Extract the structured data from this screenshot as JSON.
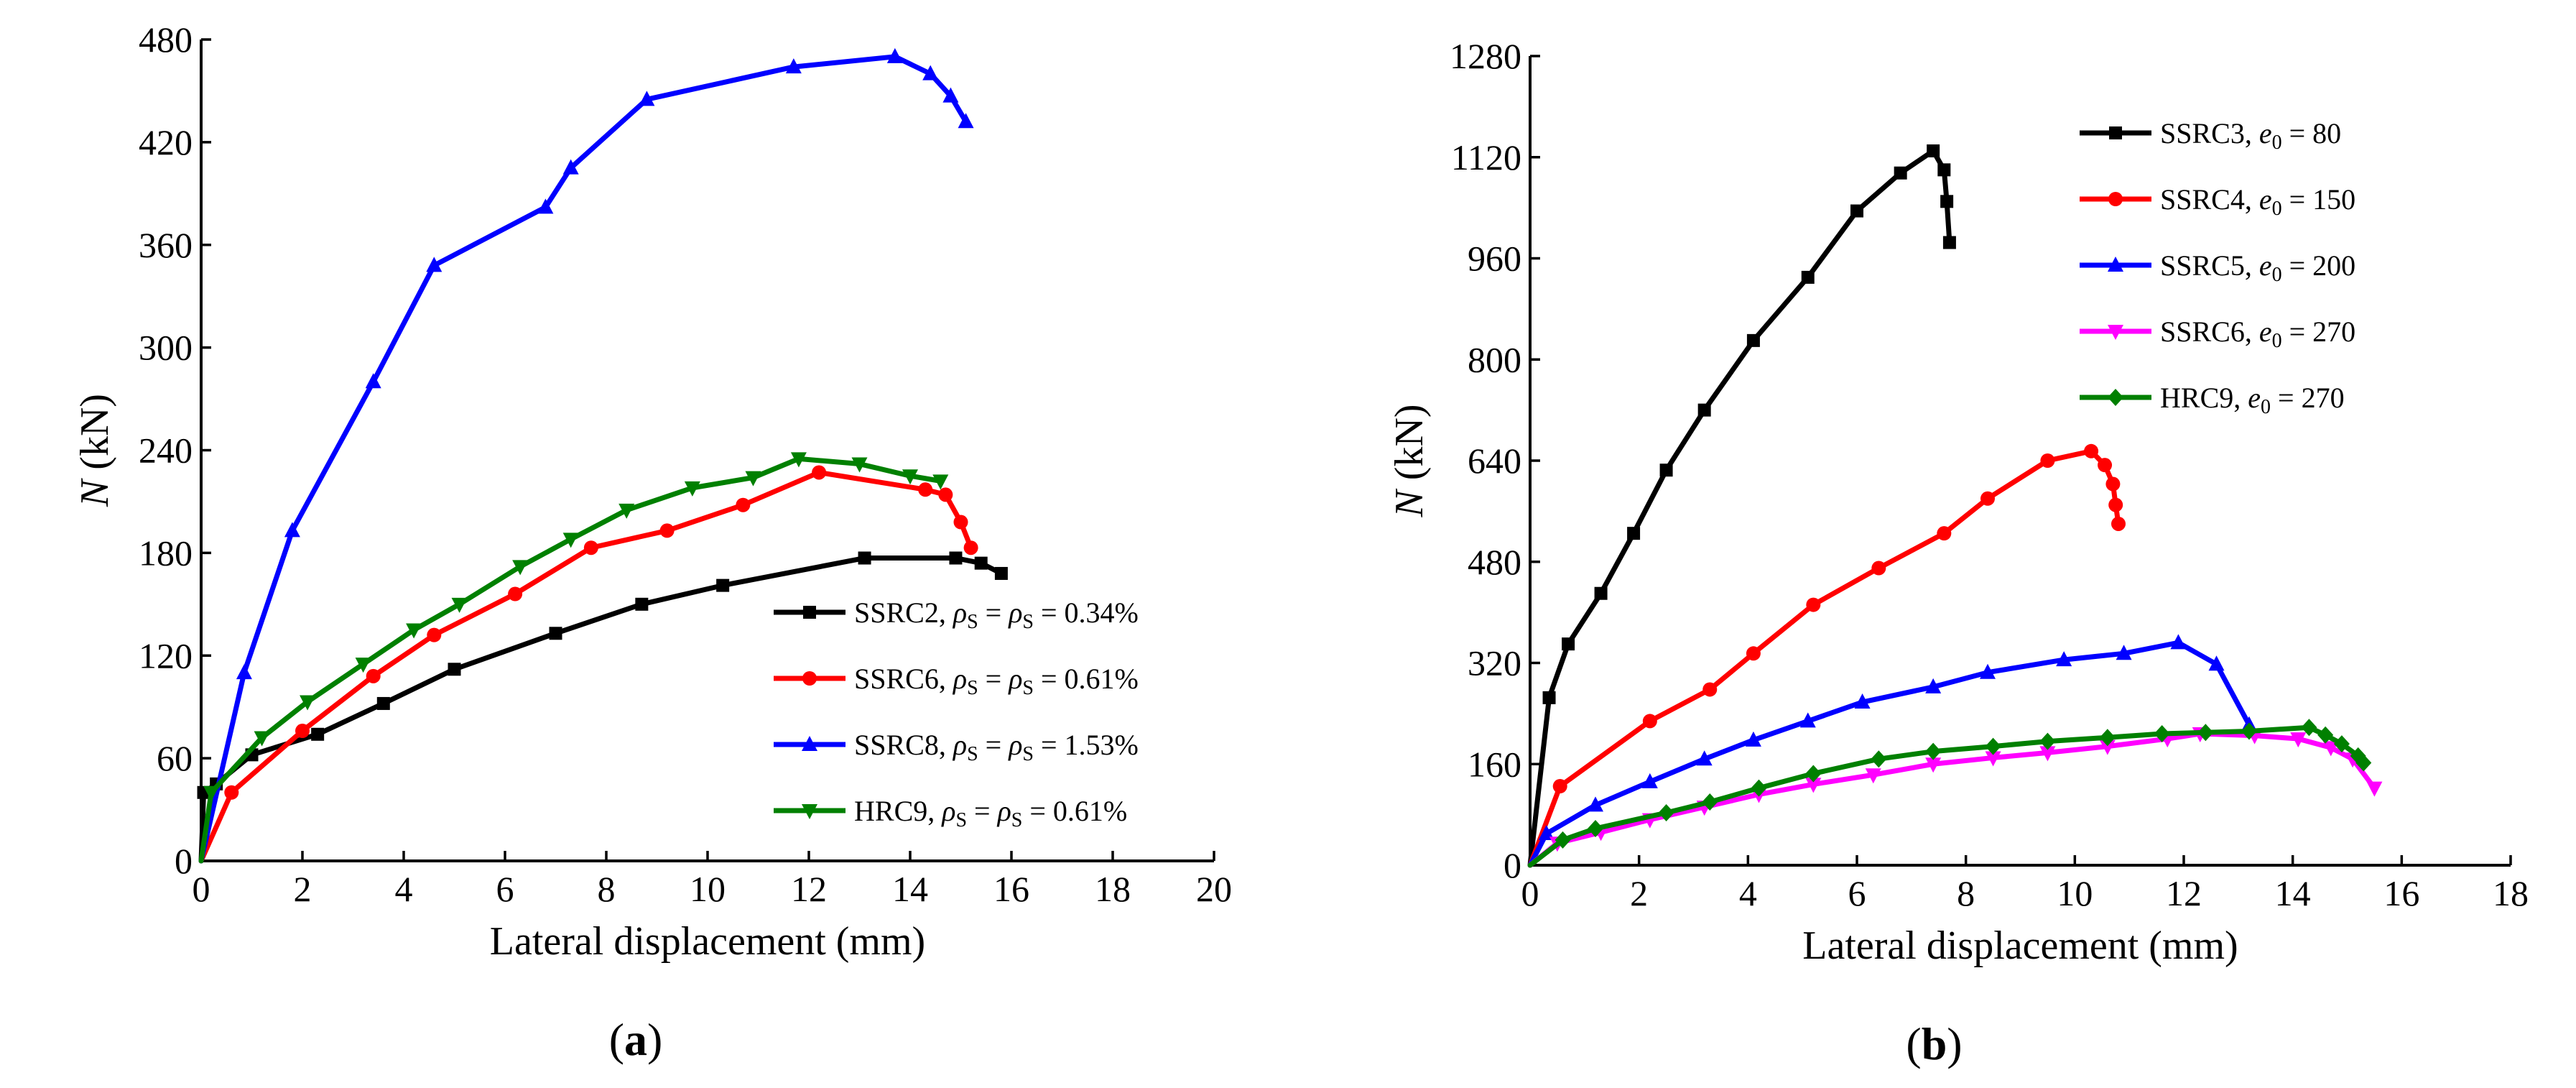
{
  "chart_data": [
    {
      "type": "line",
      "panel_label": "a",
      "xlabel": "Lateral displacement (mm)",
      "ylabel_var": "N",
      "ylabel_unit": " (kN)",
      "xlim": [
        0,
        20
      ],
      "ylim": [
        0,
        480
      ],
      "xticks": [
        0,
        2,
        4,
        6,
        8,
        10,
        12,
        14,
        16,
        18,
        20
      ],
      "yticks": [
        0,
        60,
        120,
        180,
        240,
        300,
        360,
        420,
        480
      ],
      "legend_position": "bottom-right",
      "series": [
        {
          "name": "SSRC2",
          "legend_suffix": " = 0.34%",
          "color": "#000000",
          "marker": "square",
          "x": [
            0,
            0.05,
            0.3,
            1.0,
            2.3,
            3.6,
            5.0,
            7.0,
            8.7,
            10.3,
            13.1,
            14.9,
            15.4,
            15.8
          ],
          "y": [
            0,
            40,
            45,
            62,
            74,
            92,
            112,
            133,
            150,
            161,
            177,
            177,
            174,
            168
          ]
        },
        {
          "name": "SSRC6",
          "legend_suffix": " = 0.61%",
          "color": "#ff0000",
          "marker": "circle",
          "x": [
            0,
            0.6,
            2.0,
            3.4,
            4.6,
            6.2,
            7.7,
            9.2,
            10.7,
            12.2,
            14.3,
            14.7,
            15.0,
            15.2
          ],
          "y": [
            0,
            40,
            76,
            108,
            132,
            156,
            183,
            193,
            208,
            227,
            217,
            214,
            198,
            183
          ]
        },
        {
          "name": "SSRC8",
          "legend_suffix": " = 1.53%",
          "color": "#0000ff",
          "marker": "triangle-up",
          "x": [
            0,
            0.85,
            1.8,
            3.4,
            4.6,
            6.8,
            7.3,
            8.8,
            11.7,
            13.7,
            14.4,
            14.8,
            15.1
          ],
          "y": [
            0,
            110,
            193,
            280,
            348,
            382,
            405,
            445,
            464,
            470,
            460,
            447,
            432
          ]
        },
        {
          "name": "HRC9",
          "legend_suffix": " = 0.61%",
          "color": "#008000",
          "marker": "triangle-down",
          "x": [
            0,
            0.2,
            1.2,
            2.1,
            3.2,
            4.2,
            5.1,
            6.3,
            7.3,
            8.4,
            9.7,
            10.9,
            11.8,
            13.0,
            14.0,
            14.6
          ],
          "y": [
            0,
            40,
            72,
            93,
            115,
            135,
            150,
            172,
            188,
            205,
            218,
            224,
            235,
            232,
            225,
            222
          ]
        }
      ]
    },
    {
      "type": "line",
      "panel_label": "b",
      "xlabel": "Lateral displacement (mm)",
      "ylabel_var": "N",
      "ylabel_unit": " (kN)",
      "xlim": [
        0,
        18
      ],
      "ylim": [
        0,
        1280
      ],
      "xticks": [
        0,
        2,
        4,
        6,
        8,
        10,
        12,
        14,
        16,
        18
      ],
      "yticks": [
        0,
        160,
        320,
        480,
        640,
        800,
        960,
        1120,
        1280
      ],
      "legend_position": "top-right",
      "series": [
        {
          "name": "SSRC3",
          "legend_value": " = 80",
          "color": "#000000",
          "marker": "square",
          "x": [
            0,
            0.35,
            0.7,
            1.3,
            1.9,
            2.5,
            3.2,
            4.1,
            5.1,
            6.0,
            6.8,
            7.4,
            7.6,
            7.65,
            7.7
          ],
          "y": [
            0,
            265,
            350,
            430,
            525,
            625,
            720,
            830,
            930,
            1035,
            1095,
            1130,
            1100,
            1050,
            985
          ]
        },
        {
          "name": "SSRC4",
          "legend_value": " = 150",
          "color": "#ff0000",
          "marker": "circle",
          "x": [
            0,
            0.55,
            2.2,
            3.3,
            4.1,
            5.2,
            6.4,
            7.6,
            8.4,
            9.5,
            10.3,
            10.55,
            10.7,
            10.75,
            10.8
          ],
          "y": [
            0,
            125,
            228,
            278,
            335,
            412,
            470,
            525,
            580,
            640,
            655,
            633,
            603,
            570,
            540
          ]
        },
        {
          "name": "SSRC5",
          "legend_value": " = 200",
          "color": "#0000ff",
          "marker": "triangle-up",
          "x": [
            0,
            0.3,
            1.2,
            2.2,
            3.2,
            4.1,
            5.1,
            6.1,
            7.4,
            8.4,
            9.8,
            10.9,
            11.9,
            12.6,
            13.2
          ],
          "y": [
            0,
            50,
            95,
            132,
            168,
            198,
            228,
            258,
            282,
            305,
            325,
            335,
            352,
            318,
            222
          ]
        },
        {
          "name": "SSRC6",
          "legend_value": " = 270",
          "color": "#ff00ff",
          "marker": "triangle-down",
          "x": [
            0,
            0.5,
            1.3,
            2.2,
            3.2,
            4.2,
            5.2,
            6.3,
            7.4,
            8.5,
            9.5,
            10.6,
            11.7,
            12.3,
            13.3,
            14.1,
            14.7,
            15.1,
            15.5
          ],
          "y": [
            0,
            35,
            52,
            72,
            92,
            112,
            128,
            143,
            160,
            170,
            178,
            188,
            200,
            208,
            205,
            200,
            186,
            168,
            122
          ]
        },
        {
          "name": "HRC9",
          "legend_value": " = 270",
          "color": "#008000",
          "marker": "diamond",
          "x": [
            0,
            0.6,
            1.2,
            2.5,
            3.3,
            4.2,
            5.2,
            6.4,
            7.4,
            8.5,
            9.5,
            10.6,
            11.6,
            12.4,
            13.2,
            14.3,
            14.6,
            14.9,
            15.2,
            15.3
          ],
          "y": [
            0,
            40,
            58,
            83,
            100,
            122,
            145,
            168,
            180,
            188,
            196,
            202,
            208,
            210,
            212,
            218,
            206,
            192,
            173,
            162
          ]
        }
      ]
    }
  ]
}
